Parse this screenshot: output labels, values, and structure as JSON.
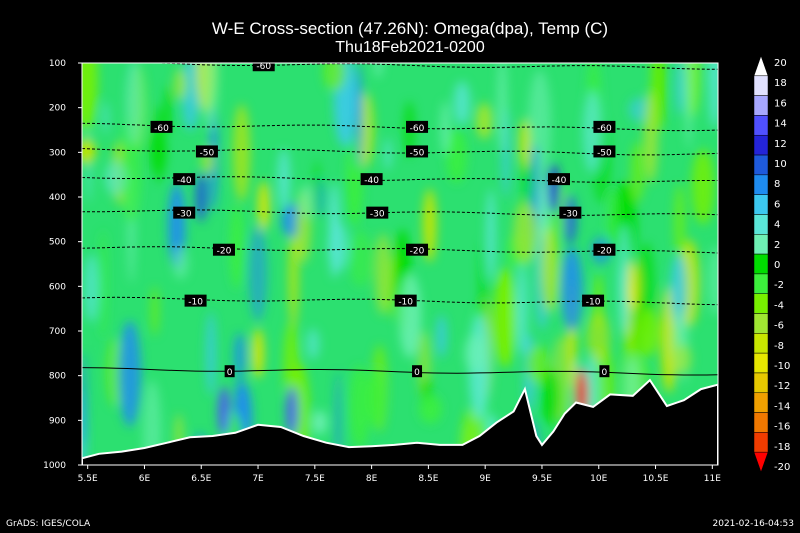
{
  "chart_data": {
    "type": "heatmap",
    "title": "W-E Cross-section (47.26N): Omega(dpa), Temp (C)",
    "subtitle": "Thu18Feb2021-0200",
    "x_ticks": [
      "5.5E",
      "6E",
      "6.5E",
      "7E",
      "7.5E",
      "8E",
      "8.5E",
      "9E",
      "9.5E",
      "10E",
      "10.5E",
      "11E"
    ],
    "x_values": [
      5.5,
      6.0,
      6.5,
      7.0,
      7.5,
      8.0,
      8.5,
      9.0,
      9.5,
      10.0,
      10.5,
      11.0
    ],
    "xlim": [
      5.45,
      11.05
    ],
    "y_ticks": [
      "100",
      "200",
      "300",
      "400",
      "500",
      "600",
      "700",
      "800",
      "900",
      "1000"
    ],
    "y_values": [
      100,
      200,
      300,
      400,
      500,
      600,
      700,
      800,
      900,
      1000
    ],
    "ylim": [
      100,
      1000
    ],
    "colorbar": {
      "labels": [
        "20",
        "18",
        "16",
        "14",
        "12",
        "10",
        "8",
        "6",
        "4",
        "2",
        "0",
        "-2",
        "-4",
        "-6",
        "-8",
        "-10",
        "-12",
        "-14",
        "-16",
        "-18",
        "-20"
      ],
      "colors": [
        "#ffffff",
        "#e1e1ff",
        "#a7a7ff",
        "#5050ff",
        "#2424d8",
        "#1e5adc",
        "#1e8cf0",
        "#3cc8f0",
        "#5ae6d8",
        "#6ef0b4",
        "#00dc00",
        "#3cf03c",
        "#78f000",
        "#a0e632",
        "#c8e600",
        "#e6e600",
        "#e6c800",
        "#f0a000",
        "#f07800",
        "#f03c00",
        "#ff0000"
      ]
    },
    "temperature_contours": [
      {
        "label": "-60",
        "pressure": 105,
        "label_x": [
          7.05
        ]
      },
      {
        "label": "-60",
        "pressure": 243,
        "label_x": [
          6.15,
          8.4,
          10.05
        ]
      },
      {
        "label": "-50",
        "pressure": 298,
        "label_x": [
          6.55,
          8.4,
          10.05
        ]
      },
      {
        "label": "-40",
        "pressure": 360,
        "label_x": [
          6.35,
          8.0,
          9.65
        ]
      },
      {
        "label": "-30",
        "pressure": 435,
        "label_x": [
          6.35,
          8.05,
          9.75
        ]
      },
      {
        "label": "-20",
        "pressure": 518,
        "label_x": [
          6.7,
          8.4,
          10.05
        ]
      },
      {
        "label": "-10",
        "pressure": 632,
        "label_x": [
          6.45,
          8.3,
          9.95
        ]
      },
      {
        "label": "0",
        "pressure": 790,
        "label_x": [
          6.75,
          8.4,
          10.05
        ]
      }
    ],
    "terrain_pressure": [
      [
        5.45,
        985
      ],
      [
        5.6,
        975
      ],
      [
        5.8,
        970
      ],
      [
        6.0,
        962
      ],
      [
        6.2,
        950
      ],
      [
        6.4,
        938
      ],
      [
        6.6,
        935
      ],
      [
        6.8,
        928
      ],
      [
        7.0,
        910
      ],
      [
        7.2,
        915
      ],
      [
        7.4,
        935
      ],
      [
        7.6,
        950
      ],
      [
        7.8,
        960
      ],
      [
        8.0,
        958
      ],
      [
        8.2,
        955
      ],
      [
        8.4,
        950
      ],
      [
        8.6,
        955
      ],
      [
        8.8,
        955
      ],
      [
        8.95,
        935
      ],
      [
        9.1,
        905
      ],
      [
        9.25,
        880
      ],
      [
        9.35,
        830
      ],
      [
        9.45,
        935
      ],
      [
        9.5,
        955
      ],
      [
        9.6,
        925
      ],
      [
        9.7,
        885
      ],
      [
        9.8,
        860
      ],
      [
        9.95,
        870
      ],
      [
        10.1,
        842
      ],
      [
        10.3,
        845
      ],
      [
        10.45,
        810
      ],
      [
        10.6,
        868
      ],
      [
        10.75,
        855
      ],
      [
        10.9,
        830
      ],
      [
        11.05,
        820
      ]
    ]
  },
  "footer": {
    "left": "GrADS: IGES/COLA",
    "right": "2021-02-16-04:53"
  }
}
